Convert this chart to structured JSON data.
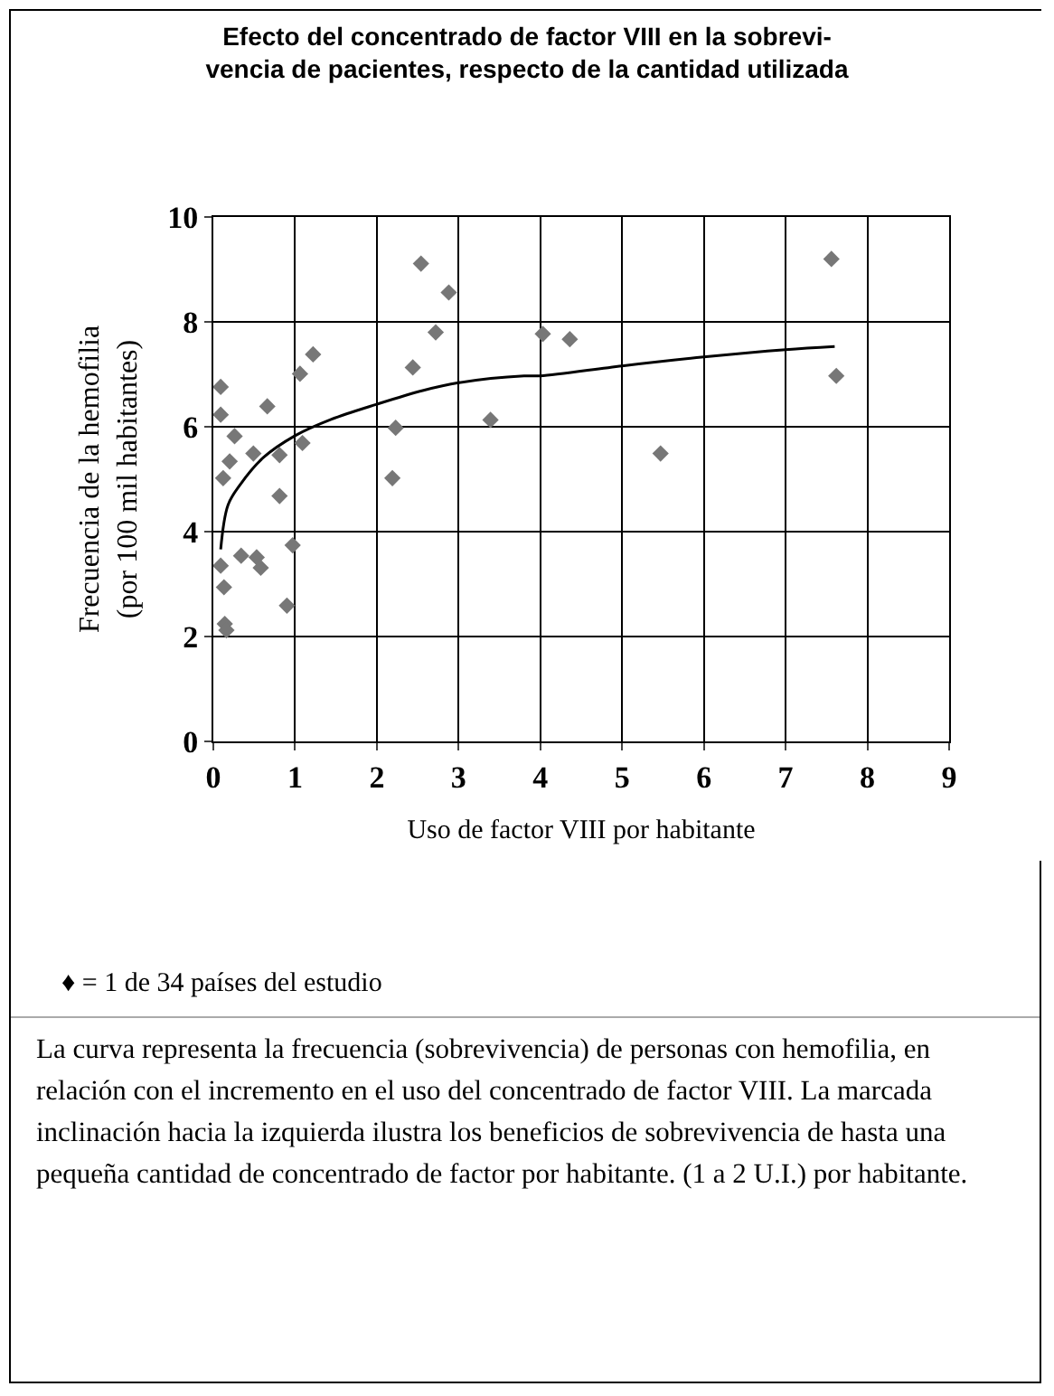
{
  "chart_data": {
    "type": "scatter",
    "title": "Efecto del concentrado de factor VIII en la sobrevi-\nvencia de pacientes, respecto de la cantidad utilizada",
    "xlabel": "Uso de factor VIII por habitante",
    "ylabel": "Frecuencia de la hemofilia\n(por 100 mil habitantes)",
    "xlim": [
      0,
      9
    ],
    "xticks": [
      0,
      1,
      2,
      3,
      4,
      5,
      6,
      7,
      8,
      9
    ],
    "ylim": [
      0,
      10
    ],
    "yticks": [
      0,
      2,
      4,
      6,
      8,
      10
    ],
    "grid": true,
    "series": [
      {
        "type": "scatter",
        "marker": "diamond",
        "color": "#777777",
        "x": [
          0.09,
          0.09,
          0.12,
          0.2,
          0.26,
          0.49,
          0.66,
          0.81,
          0.81,
          1.06,
          1.22,
          1.09,
          0.09,
          0.13,
          0.14,
          0.16,
          0.34,
          0.53,
          0.58,
          0.9,
          0.97,
          2.19,
          2.23,
          2.44,
          2.54,
          2.72,
          2.88,
          3.39,
          4.03,
          4.36,
          5.47,
          7.56,
          7.62
        ],
        "values": [
          6.76,
          6.23,
          5.02,
          5.34,
          5.82,
          5.49,
          6.39,
          5.46,
          4.68,
          7.01,
          7.38,
          5.69,
          3.35,
          2.94,
          2.24,
          2.12,
          3.54,
          3.51,
          3.31,
          2.59,
          3.74,
          5.02,
          5.98,
          7.13,
          9.11,
          7.8,
          8.56,
          6.13,
          7.77,
          7.67,
          5.49,
          9.2,
          6.97
        ]
      },
      {
        "type": "line",
        "marker": "none",
        "line_style": "solid",
        "color": "#000000",
        "x": [
          0.09,
          0.18,
          0.33,
          0.61,
          1.0,
          1.44,
          2.0,
          2.56,
          3.0,
          3.8,
          4.0,
          5.0,
          6.0,
          7.0,
          7.6
        ],
        "values": [
          3.66,
          4.51,
          4.9,
          5.41,
          5.83,
          6.14,
          6.43,
          6.69,
          6.84,
          6.97,
          6.97,
          7.16,
          7.33,
          7.47,
          7.53
        ]
      }
    ],
    "annotations": [
      "♦ = 1 de 34 países del estudio",
      "La curva representa la frecuencia (sobrevivencia) de personas con hemofilia, en relación con el incremento en el uso del concentrado de factor VIII. La marcada inclinación hacia la izquierda ilustra los beneficios de sobrevivencia de hasta una pequeña cantidad de concentrado de factor por habitante. (1 a 2 U.I.) por habitante."
    ]
  }
}
